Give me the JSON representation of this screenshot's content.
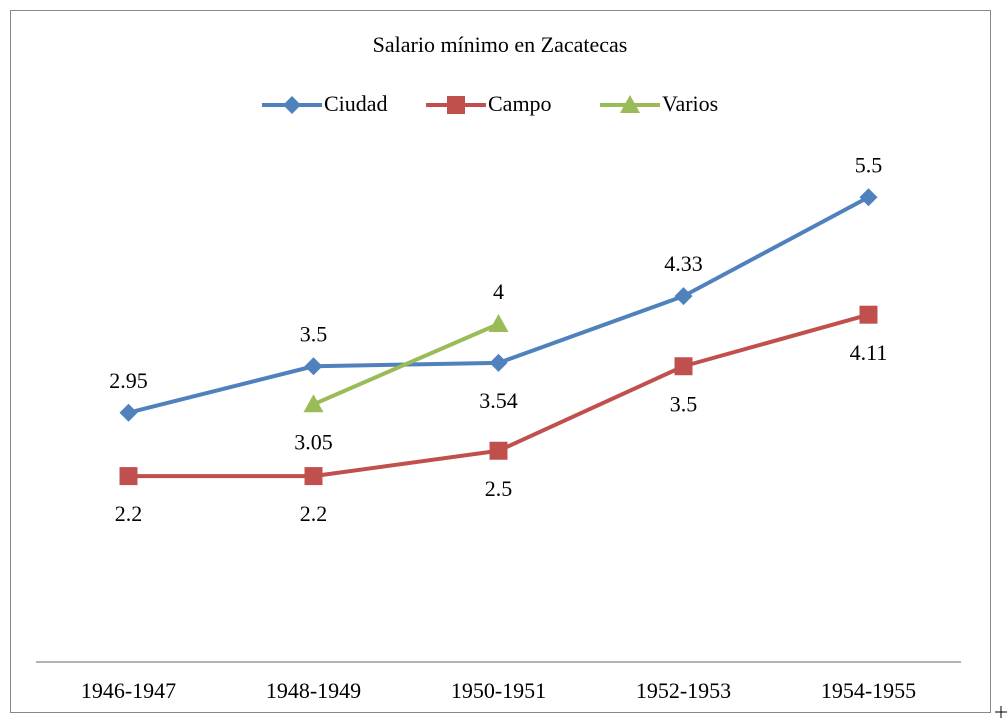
{
  "chart_data": {
    "type": "line",
    "title": "Salario mínimo en Zacatecas",
    "categories": [
      "1946-1947",
      "1948-1949",
      "1950-1951",
      "1952-1953",
      "1954-1955"
    ],
    "series": [
      {
        "name": "Ciudad",
        "color": "#4f81bd",
        "values": [
          2.95,
          3.5,
          3.54,
          4.33,
          5.5
        ]
      },
      {
        "name": "Campo",
        "color": "#c0504d",
        "values": [
          2.2,
          2.2,
          2.5,
          3.5,
          4.11
        ]
      },
      {
        "name": "Varios",
        "color": "#9bbb59",
        "values": [
          null,
          3.05,
          4,
          null,
          null
        ]
      }
    ],
    "ylim": [
      0,
      6
    ],
    "legend": "top",
    "data_labels": true
  }
}
